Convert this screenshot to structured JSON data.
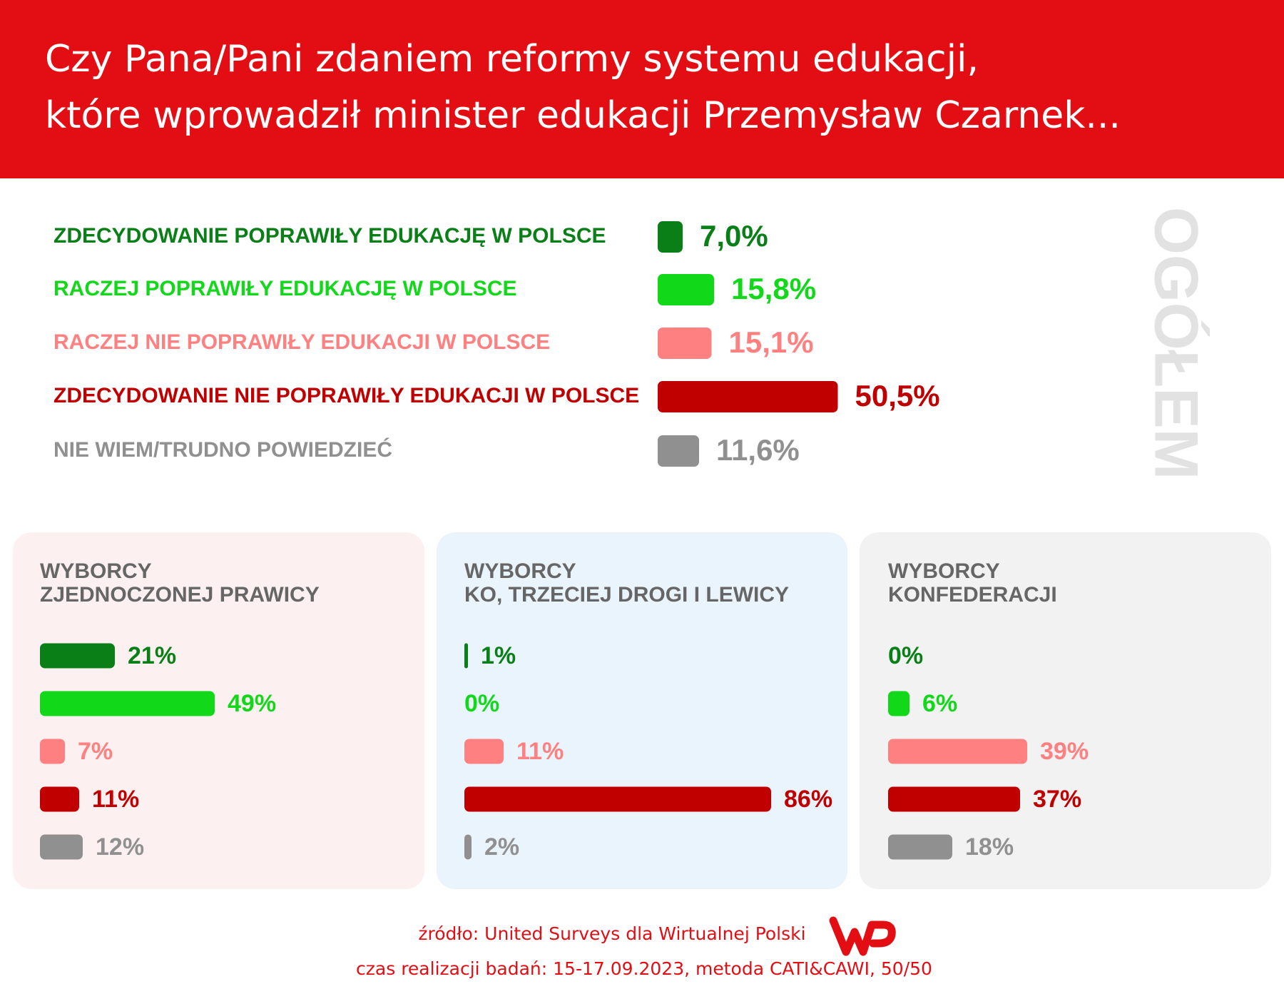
{
  "title": [
    "Czy Pana/Pani zdaniem reformy systemu edukacji,",
    "które wprowadził minister edukacji Przemysław Czarnek..."
  ],
  "side_label": "OGÓŁEM",
  "chart_data": [
    {
      "type": "bar",
      "orientation": "horizontal",
      "categories": [
        "ZDECYDOWANIE POPRAWIŁY EDUKACJĘ W POLSCE",
        "RACZEJ POPRAWIŁY EDUKACJĘ W POLSCE",
        "RACZEJ NIE POPRAWIŁY EDUKACJI W POLSCE",
        "ZDECYDOWANIE NIE POPRAWIŁY EDUKACJI W POLSCE",
        "NIE WIEM/TRUDNO POWIEDZIEĆ"
      ],
      "values": [
        7.0,
        15.8,
        15.1,
        50.5,
        11.6
      ],
      "value_labels": [
        "7,0%",
        "15,8%",
        "15,1%",
        "50,5%",
        "11,6%"
      ],
      "colors": [
        "#0a7f17",
        "#12d81a",
        "#ff8080",
        "#c00000",
        "#909090"
      ]
    },
    {
      "type": "bar",
      "orientation": "horizontal",
      "title": [
        "WYBORCY",
        "ZJEDNOCZONEJ PRAWICY"
      ],
      "values": [
        21,
        49,
        7,
        11,
        12
      ],
      "value_labels": [
        "21%",
        "49%",
        "7%",
        "11%",
        "12%"
      ],
      "colors": [
        "#0a7f17",
        "#12d81a",
        "#ff8080",
        "#c00000",
        "#909090"
      ]
    },
    {
      "type": "bar",
      "orientation": "horizontal",
      "title": [
        "WYBORCY",
        "KO, TRZECIEJ DROGI I LEWICY"
      ],
      "values": [
        1,
        0,
        11,
        86,
        2
      ],
      "value_labels": [
        "1%",
        "0%",
        "11%",
        "86%",
        "2%"
      ],
      "colors": [
        "#0a7f17",
        "#12d81a",
        "#ff8080",
        "#c00000",
        "#909090"
      ]
    },
    {
      "type": "bar",
      "orientation": "horizontal",
      "title": [
        "WYBORCY",
        "KONFEDERACJI"
      ],
      "values": [
        0,
        6,
        39,
        37,
        18
      ],
      "value_labels": [
        "0%",
        "6%",
        "39%",
        "37%",
        "18%"
      ],
      "colors": [
        "#0a7f17",
        "#12d81a",
        "#ff8080",
        "#c00000",
        "#909090"
      ]
    }
  ],
  "source": "źródło: United Surveys dla Wirtualnej Polski",
  "note": "czas realizacji badań: 15-17.09.2023, metoda CATI&CAWI, 50/50"
}
